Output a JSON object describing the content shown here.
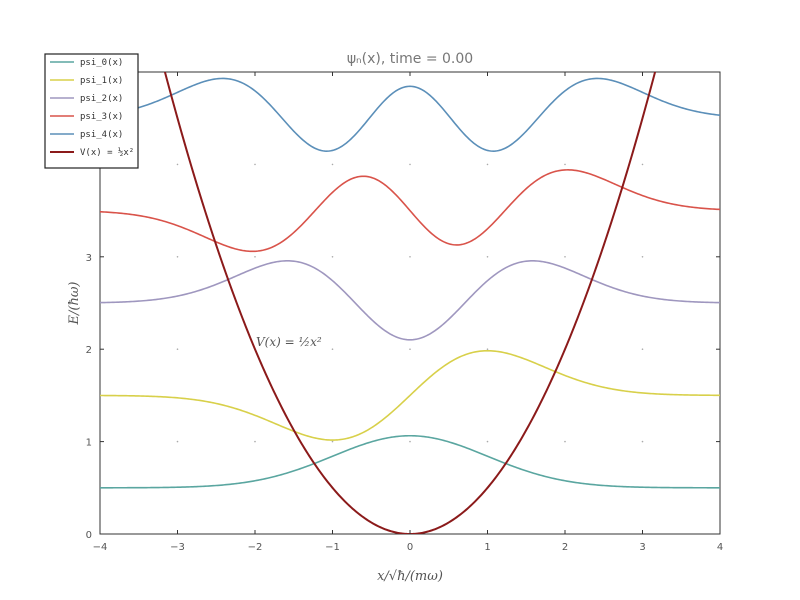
{
  "chart_data": {
    "type": "line",
    "title": "ψₙ(x), time = 0.00",
    "xlabel": "x/√ħ/(mω)",
    "ylabel": "E/(ħω)",
    "xlim": [
      -4,
      4
    ],
    "ylim": [
      0,
      5
    ],
    "xticks": [
      "−4",
      "−3",
      "−2",
      "−1",
      "0",
      "1",
      "2",
      "3",
      "4"
    ],
    "yticks": [
      "0",
      "1",
      "2",
      "3"
    ],
    "grid": "dotted points",
    "legend_position": "top-left",
    "annotation": "V(x) = ½x²",
    "series": [
      {
        "name": "psi_0(x)",
        "n": 0,
        "energy": 0.5,
        "amplitude": 0.75,
        "color": "#5aa6a0"
      },
      {
        "name": "psi_1(x)",
        "n": 1,
        "energy": 1.5,
        "amplitude": 0.75,
        "color": "#d8d04a"
      },
      {
        "name": "psi_2(x)",
        "n": 2,
        "energy": 2.5,
        "amplitude": 0.75,
        "color": "#9f97bf"
      },
      {
        "name": "psi_3(x)",
        "n": 3,
        "energy": 3.5,
        "amplitude": 0.75,
        "color": "#d9534a"
      },
      {
        "name": "psi_4(x)",
        "n": 4,
        "energy": 4.5,
        "amplitude": 0.75,
        "color": "#5b8fb9"
      },
      {
        "name": "V(x) = ½x²",
        "n": null,
        "energy": null,
        "amplitude": null,
        "color": "#8b1a1a"
      }
    ]
  }
}
